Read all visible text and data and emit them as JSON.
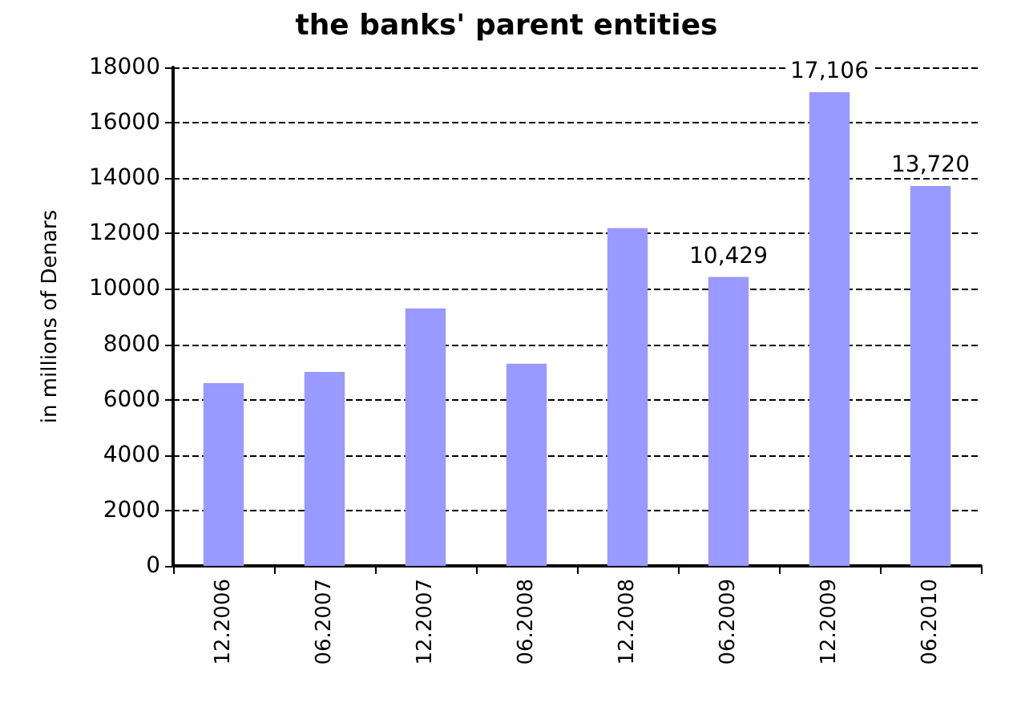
{
  "chart_data": {
    "type": "bar",
    "title": "the banks' parent entities",
    "ylabel": "in millions of Denars",
    "categories": [
      "12.2006",
      "06.2007",
      "12.2007",
      "06.2008",
      "12.2008",
      "06.2009",
      "12.2009",
      "06.2010"
    ],
    "values": [
      6600,
      7000,
      9300,
      7300,
      12200,
      10429,
      17106,
      13720
    ],
    "value_labels": [
      null,
      null,
      null,
      null,
      null,
      "10,429",
      "17,106",
      "13,720"
    ],
    "color": "#9999ff",
    "ylim": [
      0,
      18000
    ],
    "yticks": [
      0,
      2000,
      4000,
      6000,
      8000,
      10000,
      12000,
      14000,
      16000,
      18000
    ],
    "grid": "y"
  }
}
